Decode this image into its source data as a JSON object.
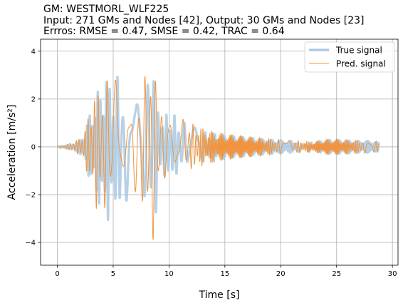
{
  "chart_data": {
    "type": "line",
    "title_lines": [
      "GM: WESTMORL_WLF225",
      "Input: 271 GMs and Nodes [42], Output: 30 GMs and Nodes [23]",
      "Errros: RMSE = 0.47, SMSE = 0.42, TRAC = 0.64"
    ],
    "xlabel": "Time [s]",
    "ylabel": "Acceleration [m/s²]",
    "xlim": [
      -1.5,
      30.5
    ],
    "ylim": [
      -4.95,
      4.5
    ],
    "xticks": [
      0,
      5,
      10,
      15,
      20,
      25,
      30
    ],
    "yticks": [
      -4,
      -2,
      0,
      2,
      4
    ],
    "grid": true,
    "legend_position": "top-right",
    "series": [
      {
        "name": "True signal",
        "color": "#a9c9e3",
        "x": [
          0,
          1,
          2,
          2.5,
          3,
          3.5,
          4,
          4.5,
          5,
          5.5,
          6,
          6.5,
          7,
          7.5,
          8,
          8.5,
          9,
          9.5,
          10,
          11,
          12,
          13,
          14,
          15,
          16,
          17,
          18,
          19,
          20,
          21,
          22,
          23,
          24,
          25,
          26,
          27,
          28,
          28.8
        ],
        "envelope": [
          0.02,
          0.1,
          0.3,
          0.7,
          1.6,
          2.2,
          2.8,
          3.1,
          2.7,
          3.0,
          2.6,
          1.8,
          1.6,
          2.5,
          2.7,
          4.2,
          2.0,
          1.2,
          1.6,
          1.1,
          0.9,
          0.7,
          0.6,
          0.5,
          0.45,
          0.4,
          0.35,
          0.3,
          0.28,
          0.25,
          0.22,
          0.2,
          0.3,
          0.3,
          0.28,
          0.25,
          0.25,
          0.2
        ]
      },
      {
        "name": "Pred. signal",
        "color": "#f0943f",
        "x": [
          0,
          1,
          2,
          2.5,
          3,
          3.5,
          4,
          4.5,
          5,
          5.5,
          6,
          6.5,
          7,
          7.5,
          8,
          8.5,
          9,
          9.5,
          10,
          11,
          12,
          13,
          14,
          15,
          16,
          17,
          18,
          19,
          20,
          21,
          22,
          23,
          24,
          25,
          26,
          27,
          28,
          28.8
        ],
        "envelope": [
          0.02,
          0.12,
          0.35,
          0.8,
          1.8,
          2.6,
          2.5,
          3.1,
          2.5,
          3.3,
          2.4,
          2.0,
          1.9,
          3.0,
          3.0,
          4.4,
          2.3,
          1.3,
          1.8,
          1.2,
          1.0,
          0.8,
          0.65,
          0.55,
          0.5,
          0.45,
          0.4,
          0.35,
          0.3,
          0.27,
          0.24,
          0.22,
          0.32,
          0.33,
          0.3,
          0.28,
          0.27,
          0.22
        ]
      }
    ]
  }
}
